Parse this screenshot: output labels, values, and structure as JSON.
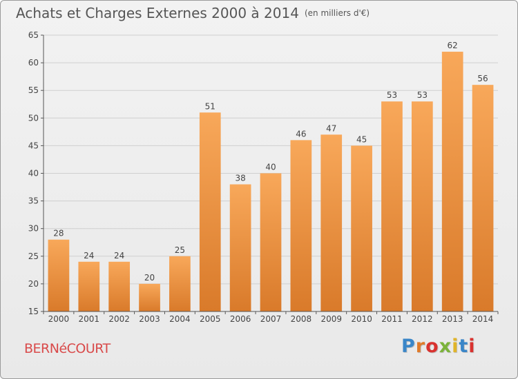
{
  "title": "Achats et Charges Externes 2000 à 2014",
  "unit": "(en milliers d'€)",
  "commune": "BERNéCOURT",
  "brand": {
    "text": "Proxiti",
    "letter_colors": [
      "#3a86c8",
      "#e07b2a",
      "#d9322f",
      "#7bb33a",
      "#e0b42a",
      "#3a86c8",
      "#d9322f"
    ]
  },
  "colors": {
    "bar_light": "#f8a85a",
    "bar_dark": "#d97a2a",
    "grid": "#cfcfcf",
    "axis": "#555555",
    "text": "#444444"
  },
  "chart_data": {
    "type": "bar",
    "categories": [
      "2000",
      "2001",
      "2002",
      "2003",
      "2004",
      "2005",
      "2006",
      "2007",
      "2008",
      "2009",
      "2010",
      "2011",
      "2012",
      "2013",
      "2014"
    ],
    "values": [
      28,
      24,
      24,
      20,
      25,
      51,
      38,
      40,
      46,
      47,
      45,
      53,
      53,
      62,
      56
    ],
    "ylim": [
      15,
      65
    ],
    "yticks": [
      15,
      20,
      25,
      30,
      35,
      40,
      45,
      50,
      55,
      60,
      65
    ],
    "grid": true
  }
}
